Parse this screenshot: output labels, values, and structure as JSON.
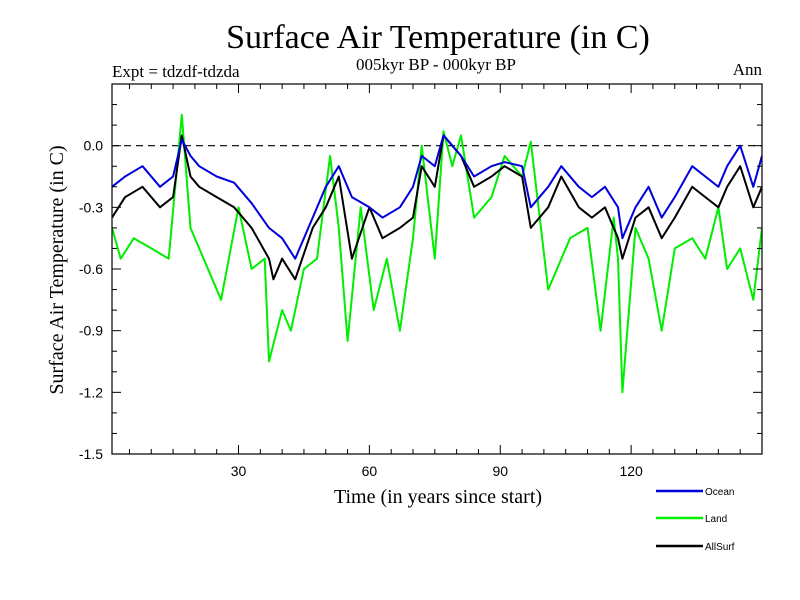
{
  "chart_data": {
    "type": "line",
    "title": "Surface Air Temperature (in C)",
    "subtitle": "005kyr BP - 000kyr BP",
    "left_note": "Expt = tdzdf-tdzda",
    "right_note": "Ann",
    "xlabel": "Time (in years since start)",
    "ylabel": "Surface Air Temperature (in C)",
    "xlim": [
      1,
      150
    ],
    "ylim": [
      -1.5,
      0.3
    ],
    "xticks": [
      30,
      60,
      90,
      120
    ],
    "xtick_labels": [
      "30",
      "60",
      "90",
      "120"
    ],
    "yticks": [
      0.0,
      -0.3,
      -0.6,
      -0.9,
      -1.2,
      -1.5
    ],
    "ytick_labels": [
      "0.0",
      "-0.3",
      "-0.6",
      "-0.9",
      "-1.2",
      "-1.5"
    ],
    "reference_line": 0.0,
    "legend_position": "bottom-right, outside plot",
    "series": [
      {
        "name": "Ocean",
        "color": "#0000dd",
        "x": [
          1,
          4,
          8,
          12,
          15,
          17,
          19,
          21,
          25,
          29,
          33,
          37,
          40,
          43,
          47,
          50,
          53,
          56,
          60,
          63,
          67,
          70,
          72,
          75,
          77,
          79,
          81,
          84,
          88,
          91,
          95,
          97,
          101,
          104,
          108,
          111,
          114,
          117,
          118,
          121,
          124,
          127,
          130,
          134,
          137,
          140,
          142,
          145,
          148,
          150
        ],
        "values": [
          -0.2,
          -0.15,
          -0.1,
          -0.2,
          -0.15,
          0.03,
          -0.05,
          -0.1,
          -0.15,
          -0.18,
          -0.28,
          -0.4,
          -0.45,
          -0.55,
          -0.35,
          -0.2,
          -0.1,
          -0.25,
          -0.3,
          -0.35,
          -0.3,
          -0.2,
          -0.05,
          -0.1,
          0.05,
          0.0,
          -0.05,
          -0.15,
          -0.1,
          -0.08,
          -0.1,
          -0.3,
          -0.2,
          -0.1,
          -0.2,
          -0.25,
          -0.2,
          -0.3,
          -0.45,
          -0.3,
          -0.2,
          -0.35,
          -0.25,
          -0.1,
          -0.15,
          -0.2,
          -0.1,
          0.0,
          -0.2,
          -0.05
        ]
      },
      {
        "name": "Land",
        "color": "#00ee00",
        "x": [
          1,
          3,
          6,
          10,
          14,
          17,
          19,
          22,
          26,
          30,
          33,
          36,
          37,
          40,
          42,
          45,
          48,
          51,
          53,
          55,
          58,
          61,
          64,
          67,
          70,
          72,
          75,
          77,
          79,
          81,
          84,
          88,
          91,
          95,
          97,
          101,
          103,
          106,
          110,
          113,
          116,
          117,
          118,
          121,
          124,
          127,
          130,
          134,
          137,
          140,
          142,
          145,
          148,
          150
        ],
        "values": [
          -0.4,
          -0.55,
          -0.45,
          -0.5,
          -0.55,
          0.15,
          -0.4,
          -0.55,
          -0.75,
          -0.3,
          -0.6,
          -0.55,
          -1.05,
          -0.8,
          -0.9,
          -0.6,
          -0.55,
          -0.05,
          -0.4,
          -0.95,
          -0.3,
          -0.8,
          -0.55,
          -0.9,
          -0.45,
          0.0,
          -0.55,
          0.07,
          -0.1,
          0.05,
          -0.35,
          -0.25,
          -0.05,
          -0.15,
          0.02,
          -0.7,
          -0.6,
          -0.45,
          -0.4,
          -0.9,
          -0.35,
          -0.55,
          -1.2,
          -0.4,
          -0.55,
          -0.9,
          -0.5,
          -0.45,
          -0.55,
          -0.3,
          -0.6,
          -0.5,
          -0.75,
          -0.4
        ]
      },
      {
        "name": "AllSurf",
        "color": "#000000",
        "x": [
          1,
          4,
          8,
          12,
          15,
          17,
          19,
          21,
          25,
          29,
          33,
          37,
          38,
          40,
          43,
          47,
          50,
          53,
          56,
          60,
          63,
          67,
          70,
          72,
          75,
          77,
          79,
          81,
          84,
          88,
          91,
          95,
          97,
          101,
          104,
          108,
          111,
          114,
          117,
          118,
          121,
          124,
          127,
          130,
          134,
          137,
          140,
          142,
          145,
          148,
          150
        ],
        "values": [
          -0.35,
          -0.25,
          -0.2,
          -0.3,
          -0.25,
          0.05,
          -0.15,
          -0.2,
          -0.25,
          -0.3,
          -0.4,
          -0.55,
          -0.65,
          -0.55,
          -0.65,
          -0.4,
          -0.3,
          -0.15,
          -0.55,
          -0.3,
          -0.45,
          -0.4,
          -0.35,
          -0.1,
          -0.2,
          0.05,
          0.0,
          -0.05,
          -0.2,
          -0.15,
          -0.1,
          -0.15,
          -0.4,
          -0.3,
          -0.15,
          -0.3,
          -0.35,
          -0.3,
          -0.45,
          -0.55,
          -0.35,
          -0.3,
          -0.45,
          -0.35,
          -0.2,
          -0.25,
          -0.3,
          -0.2,
          -0.1,
          -0.3,
          -0.2
        ]
      }
    ]
  }
}
